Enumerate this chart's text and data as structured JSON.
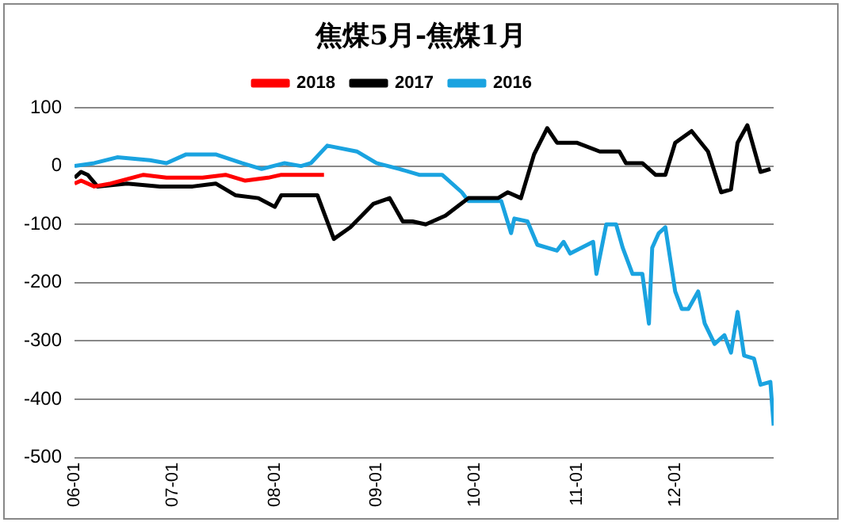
{
  "chart_data": {
    "type": "line",
    "title": "焦煤5月-焦煤1月",
    "legend": "top",
    "grid": "y",
    "marker": "none",
    "line_style": "solid",
    "xlim": [
      "--06-01",
      "--12-31"
    ],
    "xticks": [
      {
        "value": "--06-01",
        "label": "06-01"
      },
      {
        "value": "--07-01",
        "label": "07-01"
      },
      {
        "value": "--08-01",
        "label": "08-01"
      },
      {
        "value": "--09-01",
        "label": "09-01"
      },
      {
        "value": "--10-01",
        "label": "10-01"
      },
      {
        "value": "--11-01",
        "label": "11-01"
      },
      {
        "value": "--12-01",
        "label": "12-01"
      }
    ],
    "ylim": [
      -500,
      100
    ],
    "yticks": [
      -500,
      -400,
      -300,
      -200,
      -100,
      0,
      100
    ],
    "series": [
      {
        "name": "2018",
        "color": "#ff0000",
        "x": [
          "--06-01",
          "--06-03",
          "--06-07",
          "--06-12",
          "--06-22",
          "--06-29",
          "--07-10",
          "--07-17",
          "--07-23",
          "--07-30",
          "--08-03",
          "--08-09",
          "--08-16"
        ],
        "values": [
          -30,
          -25,
          -35,
          -30,
          -15,
          -20,
          -20,
          -15,
          -25,
          -20,
          -15,
          -15,
          -15
        ]
      },
      {
        "name": "2017",
        "color": "#000000",
        "x": [
          "--06-01",
          "--06-03",
          "--06-05",
          "--06-08",
          "--06-17",
          "--06-27",
          "--07-07",
          "--07-14",
          "--07-20",
          "--07-27",
          "--08-01",
          "--08-03",
          "--08-09",
          "--08-14",
          "--08-16",
          "--08-19",
          "--08-24",
          "--08-31",
          "--09-05",
          "--09-09",
          "--09-12",
          "--09-16",
          "--09-22",
          "--09-29",
          "--10-08",
          "--10-11",
          "--10-15",
          "--10-19",
          "--10-23",
          "--10-26",
          "--11-01",
          "--11-08",
          "--11-14",
          "--11-16",
          "--11-21",
          "--11-25",
          "--11-28",
          "--12-01",
          "--12-06",
          "--12-11",
          "--12-15",
          "--12-18",
          "--12-20",
          "--12-23",
          "--12-27",
          "--12-30"
        ],
        "values": [
          -20,
          -10,
          -15,
          -35,
          -30,
          -35,
          -35,
          -30,
          -50,
          -55,
          -70,
          -50,
          -50,
          -50,
          -80,
          -125,
          -105,
          -65,
          -55,
          -95,
          -95,
          -100,
          -85,
          -55,
          -55,
          -45,
          -55,
          20,
          65,
          40,
          40,
          25,
          25,
          5,
          5,
          -15,
          -15,
          40,
          60,
          25,
          -45,
          -40,
          40,
          70,
          -10,
          -5
        ]
      },
      {
        "name": "2016",
        "color": "#1aa3e0",
        "x": [
          "--06-01",
          "--06-07",
          "--06-14",
          "--06-24",
          "--06-29",
          "--07-05",
          "--07-14",
          "--07-22",
          "--07-28",
          "--08-04",
          "--08-09",
          "--08-12",
          "--08-17",
          "--08-26",
          "--09-01",
          "--09-08",
          "--09-14",
          "--09-21",
          "--09-27",
          "--09-29",
          "--10-09",
          "--10-12",
          "--10-13",
          "--10-17",
          "--10-20",
          "--10-26",
          "--10-28",
          "--10-30",
          "--11-06",
          "--11-07",
          "--11-10",
          "--11-13",
          "--11-15",
          "--11-18",
          "--11-21",
          "--11-23",
          "--11-24",
          "--11-26",
          "--11-28",
          "--12-01",
          "--12-03",
          "--12-05",
          "--12-08",
          "--12-10",
          "--12-13",
          "--12-16",
          "--12-18",
          "--12-20",
          "--12-22",
          "--12-25",
          "--12-27",
          "--12-30",
          "--12-31"
        ],
        "values": [
          0,
          5,
          15,
          10,
          5,
          20,
          20,
          5,
          -5,
          5,
          0,
          5,
          35,
          25,
          5,
          -5,
          -15,
          -15,
          -45,
          -60,
          -60,
          -115,
          -90,
          -95,
          -135,
          -145,
          -130,
          -150,
          -130,
          -185,
          -100,
          -100,
          -140,
          -185,
          -185,
          -270,
          -140,
          -115,
          -105,
          -215,
          -245,
          -245,
          -215,
          -270,
          -305,
          -290,
          -320,
          -250,
          -325,
          -330,
          -375,
          -370,
          -445
        ]
      }
    ]
  }
}
